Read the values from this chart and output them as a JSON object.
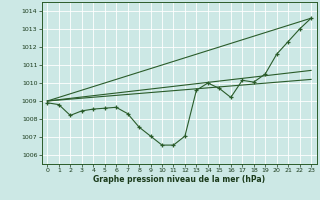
{
  "xlabel": "Graphe pression niveau de la mer (hPa)",
  "background_color": "#cce8e5",
  "grid_color": "#b8dbd8",
  "line_color": "#2a5c2a",
  "xlabel_color": "#1a3a1a",
  "tick_color": "#1a3a1a",
  "ylim": [
    1005.5,
    1014.5
  ],
  "xlim": [
    -0.5,
    23.5
  ],
  "yticks": [
    1006,
    1007,
    1008,
    1009,
    1010,
    1011,
    1012,
    1013,
    1014
  ],
  "xticks": [
    0,
    1,
    2,
    3,
    4,
    5,
    6,
    7,
    8,
    9,
    10,
    11,
    12,
    13,
    14,
    15,
    16,
    17,
    18,
    19,
    20,
    21,
    22,
    23
  ],
  "line_steep": [
    [
      0,
      23
    ],
    [
      1009.0,
      1013.6
    ]
  ],
  "line_mid1": [
    [
      0,
      23
    ],
    [
      1009.0,
      1010.7
    ]
  ],
  "line_mid2": [
    [
      0,
      23
    ],
    [
      1009.0,
      1010.2
    ]
  ],
  "main_x": [
    0,
    1,
    2,
    3,
    4,
    5,
    6,
    7,
    8,
    9,
    10,
    11,
    12,
    13,
    14,
    15,
    16,
    17,
    18,
    19,
    20,
    21,
    22,
    23
  ],
  "main_y": [
    1008.9,
    1008.8,
    1008.2,
    1008.45,
    1008.55,
    1008.6,
    1008.65,
    1008.3,
    1007.55,
    1007.05,
    1006.55,
    1006.55,
    1007.05,
    1009.6,
    1010.0,
    1009.7,
    1009.2,
    1010.15,
    1010.05,
    1010.5,
    1011.6,
    1012.3,
    1013.0,
    1013.6
  ]
}
